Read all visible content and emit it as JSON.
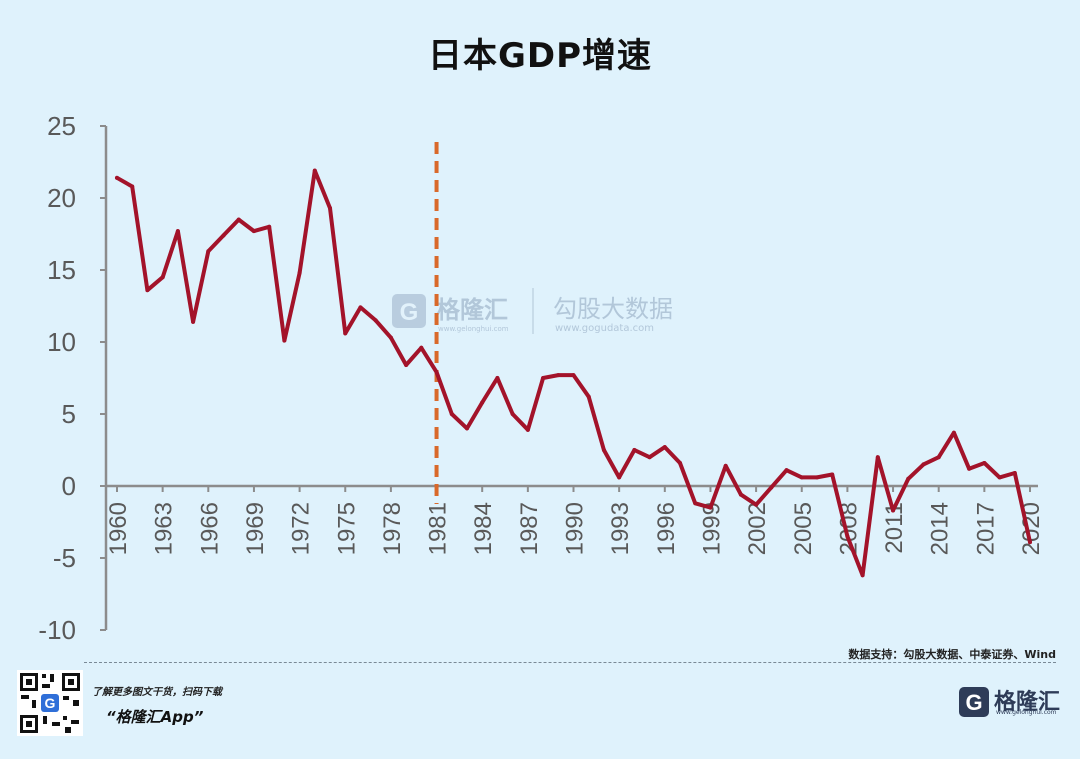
{
  "chart_data": {
    "type": "line",
    "title": "日本GDP增速",
    "x": [
      1960,
      1961,
      1962,
      1963,
      1964,
      1965,
      1966,
      1967,
      1968,
      1969,
      1970,
      1971,
      1972,
      1973,
      1974,
      1975,
      1976,
      1977,
      1978,
      1979,
      1980,
      1981,
      1982,
      1983,
      1984,
      1985,
      1986,
      1987,
      1988,
      1989,
      1990,
      1991,
      1992,
      1993,
      1994,
      1995,
      1996,
      1997,
      1998,
      1999,
      2000,
      2001,
      2002,
      2003,
      2004,
      2005,
      2006,
      2007,
      2008,
      2009,
      2010,
      2011,
      2012,
      2013,
      2014,
      2015,
      2016,
      2017,
      2018,
      2019,
      2020
    ],
    "series": [
      {
        "name": "日本GDP增速",
        "color": "#a3132a",
        "values": [
          21.4,
          20.8,
          13.6,
          14.5,
          17.7,
          11.4,
          16.3,
          17.4,
          18.5,
          17.7,
          18.0,
          10.1,
          14.8,
          21.9,
          19.3,
          10.6,
          12.4,
          11.5,
          10.3,
          8.4,
          9.6,
          7.9,
          5.0,
          4.0,
          5.8,
          7.5,
          5.0,
          3.9,
          7.5,
          7.7,
          7.7,
          6.2,
          2.5,
          0.6,
          2.5,
          2.0,
          2.7,
          1.6,
          -1.2,
          -1.5,
          1.4,
          -0.6,
          -1.3,
          -0.1,
          1.1,
          0.6,
          0.6,
          0.8,
          -3.5,
          -6.2,
          2.0,
          -1.7,
          0.5,
          1.5,
          2.0,
          3.7,
          1.2,
          1.6,
          0.6,
          0.9,
          -3.9
        ]
      }
    ],
    "xticks": [
      "1960",
      "1963",
      "1966",
      "1969",
      "1972",
      "1975",
      "1978",
      "1981",
      "1984",
      "1987",
      "1990",
      "1993",
      "1996",
      "1999",
      "2002",
      "2005",
      "2008",
      "2011",
      "2014",
      "2017",
      "2020"
    ],
    "yticks": [
      "25",
      "20",
      "15",
      "10",
      "5",
      "0",
      "-5",
      "-10"
    ],
    "ylim": [
      -10,
      25
    ],
    "xlim": [
      1960,
      2020
    ],
    "xlabel": "",
    "ylabel": "",
    "reference_line": {
      "x": 1981,
      "style": "dashed",
      "color": "#d9692a"
    },
    "watermark": {
      "brand": "格隆汇",
      "brand_url": "www.gelonghui.com",
      "partner": "勾股大数据",
      "partner_url": "www.gogudata.com"
    }
  },
  "footer": {
    "source": "数据支持：勾股大数据、中泰证券、Wind",
    "promo_line": "了解更多图文干货，扫码下载",
    "promo_app": "“格隆汇App”",
    "brand_name": "格隆汇",
    "brand_url": "www.gelonghui.com"
  },
  "colors": {
    "background": "#dff2fc",
    "line": "#a3132a",
    "refline": "#d9692a",
    "axis": "#8c8c8c",
    "tick_text": "#595959"
  }
}
